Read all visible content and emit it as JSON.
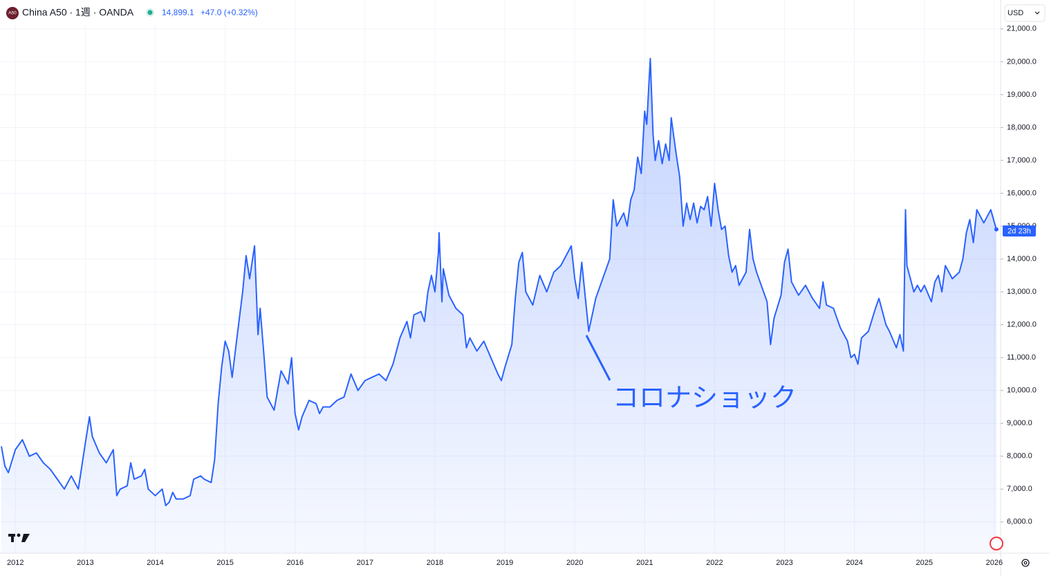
{
  "chart_data": {
    "type": "area",
    "header": {
      "logo": "A50",
      "symbol": "China A50 · 1週 · OANDA",
      "price": "14,899.1",
      "change": "+47.0 (+0.32%)",
      "currency": "USD",
      "countdown": "2d 23h"
    },
    "annotation": "コロナショック",
    "color": "#2962ff",
    "grid": true,
    "x": [
      2011.8,
      2011.85,
      2011.9,
      2012.0,
      2012.1,
      2012.2,
      2012.3,
      2012.4,
      2012.5,
      2012.6,
      2012.7,
      2012.8,
      2012.9,
      2013.0,
      2013.06,
      2013.1,
      2013.2,
      2013.3,
      2013.4,
      2013.45,
      2013.5,
      2013.6,
      2013.65,
      2013.7,
      2013.8,
      2013.85,
      2013.9,
      2014.0,
      2014.1,
      2014.15,
      2014.2,
      2014.25,
      2014.3,
      2014.4,
      2014.5,
      2014.55,
      2014.65,
      2014.7,
      2014.8,
      2014.85,
      2014.9,
      2014.95,
      2015.0,
      2015.05,
      2015.1,
      2015.18,
      2015.25,
      2015.3,
      2015.35,
      2015.42,
      2015.47,
      2015.5,
      2015.55,
      2015.6,
      2015.7,
      2015.8,
      2015.9,
      2015.95,
      2016.0,
      2016.05,
      2016.1,
      2016.2,
      2016.3,
      2016.35,
      2016.4,
      2016.5,
      2016.6,
      2016.7,
      2016.8,
      2016.9,
      2017.0,
      2017.1,
      2017.2,
      2017.3,
      2017.4,
      2017.5,
      2017.6,
      2017.65,
      2017.7,
      2017.8,
      2017.85,
      2017.9,
      2017.95,
      2018.0,
      2018.05,
      2018.06,
      2018.1,
      2018.12,
      2018.2,
      2018.3,
      2018.4,
      2018.45,
      2018.5,
      2018.6,
      2018.7,
      2018.8,
      2018.9,
      2018.95,
      2019.0,
      2019.1,
      2019.15,
      2019.2,
      2019.25,
      2019.3,
      2019.4,
      2019.5,
      2019.6,
      2019.7,
      2019.8,
      2019.9,
      2019.95,
      2020.0,
      2020.05,
      2020.1,
      2020.2,
      2020.3,
      2020.4,
      2020.5,
      2020.55,
      2020.6,
      2020.7,
      2020.75,
      2020.8,
      2020.85,
      2020.9,
      2020.95,
      2021.0,
      2021.03,
      2021.08,
      2021.12,
      2021.15,
      2021.2,
      2021.25,
      2021.3,
      2021.35,
      2021.38,
      2021.45,
      2021.5,
      2021.55,
      2021.6,
      2021.65,
      2021.7,
      2021.75,
      2021.8,
      2021.85,
      2021.9,
      2021.95,
      2022.0,
      2022.05,
      2022.1,
      2022.15,
      2022.2,
      2022.25,
      2022.3,
      2022.35,
      2022.45,
      2022.5,
      2022.55,
      2022.6,
      2022.7,
      2022.75,
      2022.8,
      2022.85,
      2022.95,
      2023.0,
      2023.05,
      2023.1,
      2023.2,
      2023.3,
      2023.4,
      2023.5,
      2023.55,
      2023.6,
      2023.7,
      2023.8,
      2023.9,
      2023.95,
      2024.0,
      2024.05,
      2024.1,
      2024.2,
      2024.3,
      2024.35,
      2024.45,
      2024.5,
      2024.6,
      2024.65,
      2024.7,
      2024.73,
      2024.75,
      2024.8,
      2024.85,
      2024.9,
      2024.95,
      2025.0,
      2025.1,
      2025.15,
      2025.2,
      2025.25,
      2025.3,
      2025.4,
      2025.5,
      2025.55,
      2025.6,
      2025.65,
      2025.7,
      2025.75,
      2025.85,
      2025.9,
      2025.95,
      2026.03
    ],
    "values": [
      8300,
      7700,
      7500,
      8200,
      8500,
      8000,
      8100,
      7800,
      7600,
      7300,
      7000,
      7400,
      7000,
      8400,
      9200,
      8600,
      8100,
      7800,
      8200,
      6800,
      7000,
      7100,
      7800,
      7300,
      7400,
      7600,
      7000,
      6800,
      7000,
      6500,
      6600,
      6900,
      6700,
      6700,
      6800,
      7300,
      7400,
      7300,
      7200,
      7900,
      9600,
      10700,
      11500,
      11200,
      10400,
      11800,
      13000,
      14100,
      13400,
      14400,
      11700,
      12500,
      11200,
      9800,
      9400,
      10600,
      10200,
      11000,
      9300,
      8800,
      9200,
      9700,
      9600,
      9300,
      9500,
      9500,
      9700,
      9800,
      10500,
      10000,
      10300,
      10400,
      10500,
      10300,
      10800,
      11600,
      12100,
      11600,
      12300,
      12400,
      12100,
      13000,
      13500,
      13000,
      14200,
      14800,
      12700,
      13700,
      12900,
      12500,
      12300,
      11300,
      11600,
      11200,
      11500,
      11000,
      10500,
      10300,
      10700,
      11400,
      12800,
      13900,
      14200,
      13000,
      12600,
      13500,
      13000,
      13600,
      13800,
      14200,
      14400,
      13400,
      12800,
      13900,
      11800,
      12800,
      13400,
      14000,
      15800,
      15000,
      15400,
      15000,
      15800,
      16100,
      17100,
      16600,
      18500,
      18100,
      20100,
      17800,
      17000,
      17600,
      16900,
      17500,
      17000,
      18300,
      17200,
      16500,
      15000,
      15700,
      15200,
      15700,
      15100,
      15600,
      15500,
      15900,
      15000,
      16300,
      15500,
      14900,
      15000,
      14100,
      13600,
      13800,
      13200,
      13600,
      14900,
      14000,
      13600,
      13000,
      12700,
      11400,
      12200,
      12900,
      13900,
      14300,
      13300,
      12900,
      13200,
      12800,
      12500,
      13300,
      12600,
      12500,
      11900,
      11500,
      11000,
      11100,
      10800,
      11600,
      11800,
      12500,
      12800,
      12000,
      11800,
      11300,
      11700,
      11200,
      15500,
      13800,
      13400,
      13000,
      13200,
      13000,
      13200,
      12700,
      13300,
      13500,
      13000,
      13800,
      13400,
      13600,
      14000,
      14800,
      15200,
      14500,
      15500,
      15100,
      15300,
      15500,
      14900
    ],
    "xlim": [
      2011.78,
      2026.09
    ],
    "xticks": [
      2012,
      2013,
      2014,
      2015,
      2016,
      2017,
      2018,
      2019,
      2020,
      2021,
      2022,
      2023,
      2024,
      2025,
      2026
    ],
    "ylim": [
      5050,
      21880
    ],
    "yticks": [
      {
        "value": 6000,
        "label": "6,000.0"
      },
      {
        "value": 7000,
        "label": "7,000.0"
      },
      {
        "value": 8000,
        "label": "8,000.0"
      },
      {
        "value": 9000,
        "label": "9,000.0"
      },
      {
        "value": 10000,
        "label": "10,000.0"
      },
      {
        "value": 11000,
        "label": "11,000.0"
      },
      {
        "value": 12000,
        "label": "12,000.0"
      },
      {
        "value": 13000,
        "label": "13,000.0"
      },
      {
        "value": 14000,
        "label": "14,000.0"
      },
      {
        "value": 15000,
        "label": "15,000.0"
      },
      {
        "value": 16000,
        "label": "16,000.0"
      },
      {
        "value": 17000,
        "label": "17,000.0"
      },
      {
        "value": 18000,
        "label": "18,000.0"
      },
      {
        "value": 19000,
        "label": "19,000.0"
      },
      {
        "value": 20000,
        "label": "20,000.0"
      },
      {
        "value": 21000,
        "label": "21,000.0"
      }
    ]
  }
}
